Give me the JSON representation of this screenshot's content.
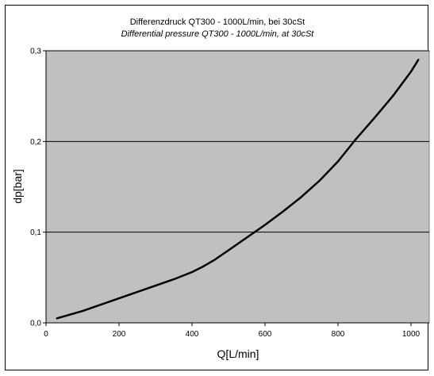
{
  "chart_data": {
    "type": "line",
    "title": "Differenzdruck QT300 - 1000L/min, bei 30cSt",
    "subtitle": "Differential pressure QT300 - 1000L/min, at 30cSt",
    "xlabel": "Q[L/min]",
    "ylabel": "dp[bar]",
    "xlim": [
      0,
      1050
    ],
    "ylim": [
      0,
      0.3
    ],
    "xticks": [
      0,
      200,
      400,
      600,
      800,
      1000
    ],
    "yticks": [
      0,
      0.1,
      0.2,
      0.3
    ],
    "xtick_labels": [
      "0",
      "200",
      "400",
      "600",
      "800",
      "1000"
    ],
    "ytick_labels": [
      "0,0",
      "0,1",
      "0,2",
      "0,3"
    ],
    "grid": "horizontal",
    "legend": "none",
    "plot_background": "#c0c0c0",
    "line_color": "#000000",
    "series": [
      {
        "x": [
          30,
          100,
          150,
          200,
          250,
          300,
          350,
          400,
          430,
          460,
          500,
          550,
          600,
          650,
          700,
          750,
          800,
          850,
          900,
          950,
          1000,
          1020
        ],
        "y": [
          0.005,
          0.013,
          0.02,
          0.027,
          0.034,
          0.041,
          0.048,
          0.056,
          0.062,
          0.069,
          0.08,
          0.094,
          0.108,
          0.123,
          0.139,
          0.157,
          0.178,
          0.203,
          0.226,
          0.25,
          0.277,
          0.29
        ]
      }
    ]
  }
}
